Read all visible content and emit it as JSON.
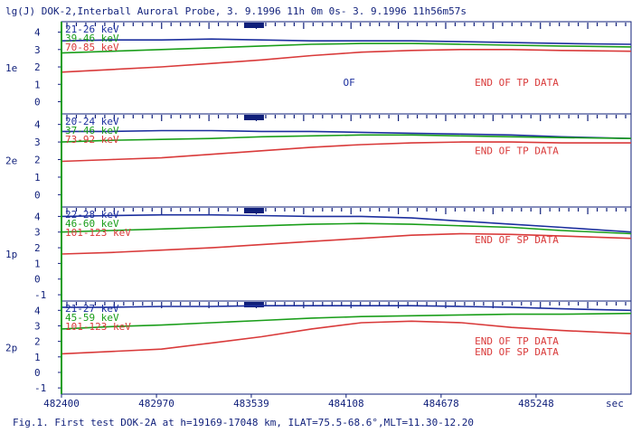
{
  "header": "lg(J) DOK-2,Interball Auroral Probe,   3. 9.1996 11h 0m 0s- 3. 9.1996 11h56m57s",
  "caption": "Fig.1. First test DOK-2A at h=19169-17048 km, ILAT=75.5-68.6°,MLT=11.30-12.20",
  "colors": {
    "blue": "#1c2f9e",
    "green": "#1a9e1a",
    "red": "#d93a3a",
    "axis": "#0f1f7a",
    "text": "#0f1f7a"
  },
  "chart_data": {
    "type": "line",
    "x_ticks": [
      "482400",
      "482970",
      "483539",
      "484108",
      "484678",
      "485248"
    ],
    "x_unit": "sec",
    "xlim": [
      482400,
      485818
    ],
    "grid": false,
    "panels": [
      {
        "id": "1e",
        "y_ticks": [
          4,
          3,
          2,
          1,
          0
        ],
        "ylim": [
          -0.7,
          4.6
        ],
        "legend": [
          "21-26 keV",
          "39-46 keV",
          "70-85 keV"
        ],
        "annotations": [
          {
            "text": "OF",
            "x": 484090,
            "y": 0.9,
            "color": "blue"
          },
          {
            "text": "END OF TP DATA",
            "x": 484880,
            "y": 0.9,
            "color": "red"
          }
        ],
        "series": [
          {
            "name": "21-26 keV",
            "color": "blue",
            "x": [
              482400,
              482700,
              483000,
              483300,
              483600,
              483900,
              484200,
              484500,
              484800,
              485100,
              485400,
              485818
            ],
            "y": [
              3.5,
              3.55,
              3.55,
              3.6,
              3.55,
              3.5,
              3.5,
              3.5,
              3.45,
              3.4,
              3.35,
              3.3
            ]
          },
          {
            "name": "39-46 keV",
            "color": "green",
            "x": [
              482400,
              482700,
              483000,
              483300,
              483600,
              483900,
              484200,
              484500,
              484800,
              485100,
              485400,
              485818
            ],
            "y": [
              2.8,
              2.9,
              3.0,
              3.1,
              3.2,
              3.3,
              3.35,
              3.35,
              3.3,
              3.25,
              3.2,
              3.15
            ]
          },
          {
            "name": "70-85 keV",
            "color": "red",
            "x": [
              482400,
              482700,
              483000,
              483300,
              483600,
              483900,
              484200,
              484500,
              484800,
              485100,
              485400,
              485818
            ],
            "y": [
              1.7,
              1.85,
              2.0,
              2.2,
              2.4,
              2.65,
              2.85,
              2.95,
              3.0,
              3.0,
              2.95,
              2.9
            ]
          }
        ]
      },
      {
        "id": "2e",
        "y_ticks": [
          4,
          3,
          2,
          1,
          0
        ],
        "ylim": [
          -0.7,
          4.6
        ],
        "legend": [
          "20-24 keV",
          "37-46 keV",
          "73-92 keV"
        ],
        "annotations": [
          {
            "text": "END OF TP DATA",
            "x": 484880,
            "y": 2.3,
            "color": "red"
          }
        ],
        "series": [
          {
            "name": "20-24 keV",
            "color": "blue",
            "x": [
              482400,
              482700,
              483000,
              483300,
              483600,
              483900,
              484200,
              484500,
              484800,
              485100,
              485400,
              485818
            ],
            "y": [
              3.6,
              3.6,
              3.65,
              3.65,
              3.6,
              3.6,
              3.55,
              3.5,
              3.45,
              3.4,
              3.3,
              3.2
            ]
          },
          {
            "name": "37-46 keV",
            "color": "green",
            "x": [
              482400,
              482700,
              483000,
              483300,
              483600,
              483900,
              484200,
              484500,
              484800,
              485100,
              485400,
              485818
            ],
            "y": [
              3.0,
              3.1,
              3.15,
              3.2,
              3.3,
              3.35,
              3.4,
              3.4,
              3.35,
              3.3,
              3.25,
              3.2
            ]
          },
          {
            "name": "73-92 keV",
            "color": "red",
            "x": [
              482400,
              482700,
              483000,
              483300,
              483600,
              483900,
              484200,
              484500,
              484800,
              485100,
              485400,
              485818
            ],
            "y": [
              1.9,
              2.0,
              2.1,
              2.3,
              2.5,
              2.7,
              2.85,
              2.95,
              3.0,
              3.0,
              2.95,
              2.95
            ]
          }
        ]
      },
      {
        "id": "1p",
        "y_ticks": [
          4,
          3,
          2,
          1,
          0,
          -1
        ],
        "ylim": [
          -1.4,
          4.6
        ],
        "legend": [
          "22-28 keV",
          "46-60 keV",
          "101-123 keV"
        ],
        "annotations": [
          {
            "text": "END OF SP DATA",
            "x": 484880,
            "y": 2.3,
            "color": "red"
          }
        ],
        "series": [
          {
            "name": "22-28 keV",
            "color": "blue",
            "x": [
              482400,
              482700,
              483000,
              483300,
              483600,
              483900,
              484200,
              484500,
              484800,
              485100,
              485400,
              485818
            ],
            "y": [
              4.0,
              4.05,
              4.1,
              4.1,
              4.05,
              4.0,
              4.0,
              3.9,
              3.7,
              3.5,
              3.3,
              3.0
            ]
          },
          {
            "name": "46-60 keV",
            "color": "green",
            "x": [
              482400,
              482700,
              483000,
              483300,
              483600,
              483900,
              484200,
              484500,
              484800,
              485100,
              485400,
              485818
            ],
            "y": [
              3.0,
              3.1,
              3.2,
              3.3,
              3.4,
              3.5,
              3.55,
              3.5,
              3.4,
              3.3,
              3.1,
              2.9
            ]
          },
          {
            "name": "101-123 keV",
            "color": "red",
            "x": [
              482400,
              482700,
              483000,
              483300,
              483600,
              483900,
              484200,
              484500,
              484800,
              485100,
              485400,
              485818
            ],
            "y": [
              1.6,
              1.7,
              1.85,
              2.0,
              2.2,
              2.4,
              2.6,
              2.8,
              2.9,
              2.85,
              2.75,
              2.6
            ]
          }
        ]
      },
      {
        "id": "2p",
        "y_ticks": [
          4,
          3,
          2,
          1,
          0,
          -1
        ],
        "ylim": [
          -1.4,
          4.6
        ],
        "legend": [
          "21-27 keV",
          "45-59 keV",
          "101-123 keV"
        ],
        "annotations": [
          {
            "text": "END OF TP DATA",
            "x": 484880,
            "y": 1.8,
            "color": "red"
          },
          {
            "text": "END OF SP DATA",
            "x": 484880,
            "y": 1.1,
            "color": "red"
          }
        ],
        "series": [
          {
            "name": "21-27 keV",
            "color": "blue",
            "x": [
              482400,
              482700,
              483000,
              483300,
              483600,
              483900,
              484200,
              484500,
              484800,
              485100,
              485400,
              485818
            ],
            "y": [
              4.2,
              4.2,
              4.25,
              4.25,
              4.3,
              4.3,
              4.3,
              4.3,
              4.25,
              4.2,
              4.1,
              4.0
            ]
          },
          {
            "name": "45-59 keV",
            "color": "green",
            "x": [
              482400,
              482700,
              483000,
              483300,
              483600,
              483900,
              484200,
              484500,
              484800,
              485100,
              485400,
              485818
            ],
            "y": [
              2.8,
              2.95,
              3.05,
              3.2,
              3.35,
              3.5,
              3.6,
              3.65,
              3.7,
              3.75,
              3.75,
              3.8
            ]
          },
          {
            "name": "101-123 keV",
            "color": "red",
            "x": [
              482400,
              482700,
              483000,
              483300,
              483600,
              483900,
              484200,
              484500,
              484800,
              485100,
              485400,
              485818
            ],
            "y": [
              1.2,
              1.35,
              1.5,
              1.9,
              2.3,
              2.8,
              3.2,
              3.3,
              3.2,
              2.9,
              2.7,
              2.5
            ]
          }
        ]
      }
    ]
  }
}
